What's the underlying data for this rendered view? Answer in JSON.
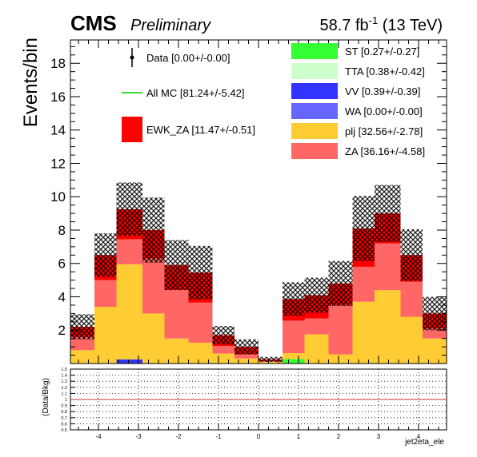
{
  "header": {
    "cms_label": "CMS",
    "prelim_label": "Preliminary",
    "lumi_value": "58.7 fb",
    "lumi_exp": "-1",
    "lumi_energy": " (13 TeV)"
  },
  "legend": {
    "left": [
      {
        "label": "Data [0.00+/-0.00]",
        "style": "marker"
      },
      {
        "label": "All MC [81.24+/-5.42]",
        "style": "line",
        "color": "#33dd33"
      },
      {
        "label": "EWK_ZA [11.47+/-0.51]",
        "style": "box",
        "color": "#ff0000"
      }
    ],
    "right": [
      {
        "label": "ST [0.27+/-0.27]",
        "color": "#33ff33"
      },
      {
        "label": "TTA [0.38+/-0.42]",
        "color": "#ccffcc"
      },
      {
        "label": "VV [0.39+/-0.39]",
        "color": "#3333ff"
      },
      {
        "label": "WA [0.00+/-0.00]",
        "color": "#6666ff"
      },
      {
        "label": "plj [32.56+/-2.78]",
        "color": "#ffcc33"
      },
      {
        "label": "ZA [36.16+/-4.58]",
        "color": "#ff6666"
      }
    ]
  },
  "chart_data": {
    "type": "bar",
    "stacked": true,
    "xlabel": "jet2eta_ele",
    "ylabel": "Events/bin",
    "ratio_ylabel": "(Data/Bkg)",
    "xlim": [
      -4.7,
      4.7
    ],
    "ylim": [
      0,
      19.4
    ],
    "ratio_ylim": [
      0.5,
      1.5
    ],
    "bin_edges": [
      -4.7,
      -4.1,
      -3.55,
      -2.9,
      -2.35,
      -1.75,
      -1.15,
      -0.6,
      0,
      0.6,
      1.15,
      1.75,
      2.35,
      2.9,
      3.55,
      4.1,
      4.7
    ],
    "xticks": [
      -4,
      -3,
      -2,
      -1,
      0,
      1,
      2,
      3,
      4
    ],
    "yticks": [
      2,
      4,
      6,
      8,
      10,
      12,
      14,
      16,
      18
    ],
    "ratio_yticks": [
      0.5,
      0.6,
      0.7,
      0.8,
      0.9,
      1,
      1.1,
      1.2,
      1.3,
      1.4,
      1.5
    ],
    "ratio_reference": 1.0,
    "series": [
      {
        "name": "VV",
        "color": "#3333ff",
        "values": [
          0,
          0,
          0.25,
          0,
          0,
          0,
          0,
          0,
          0,
          0,
          0,
          0,
          0,
          0,
          0,
          0
        ]
      },
      {
        "name": "ST",
        "color": "#33ff33",
        "values": [
          0,
          0,
          0,
          0,
          0,
          0,
          0,
          0,
          0,
          0.27,
          0,
          0,
          0,
          0,
          0,
          0
        ]
      },
      {
        "name": "plj",
        "color": "#ffcc33",
        "values": [
          0.8,
          3.4,
          5.7,
          3.0,
          1.5,
          1.25,
          0.6,
          0.3,
          0.1,
          0.35,
          1.75,
          0.55,
          3.7,
          4.4,
          2.8,
          1.5
        ]
      },
      {
        "name": "ZA",
        "color": "#ff6666",
        "values": [
          0.8,
          1.6,
          1.5,
          3.3,
          2.9,
          2.4,
          0.45,
          0.25,
          0.05,
          1.95,
          0.95,
          2.95,
          2.1,
          2.8,
          2.1,
          0.6
        ]
      },
      {
        "name": "EWK_ZA",
        "color": "#ff0000",
        "values": [
          0.6,
          1.5,
          1.8,
          1.7,
          1.5,
          1.8,
          0.65,
          0.45,
          0.1,
          1.3,
          1.4,
          1.3,
          2.3,
          1.8,
          1.6,
          0.9
        ]
      }
    ],
    "uncertainty_band": [
      0.75,
      1.3,
      1.6,
      1.95,
      1.5,
      1.6,
      0.55,
      0.45,
      0.15,
      1.0,
      1.05,
      1.35,
      1.95,
      1.7,
      1.55,
      1.0
    ],
    "grid": true
  }
}
